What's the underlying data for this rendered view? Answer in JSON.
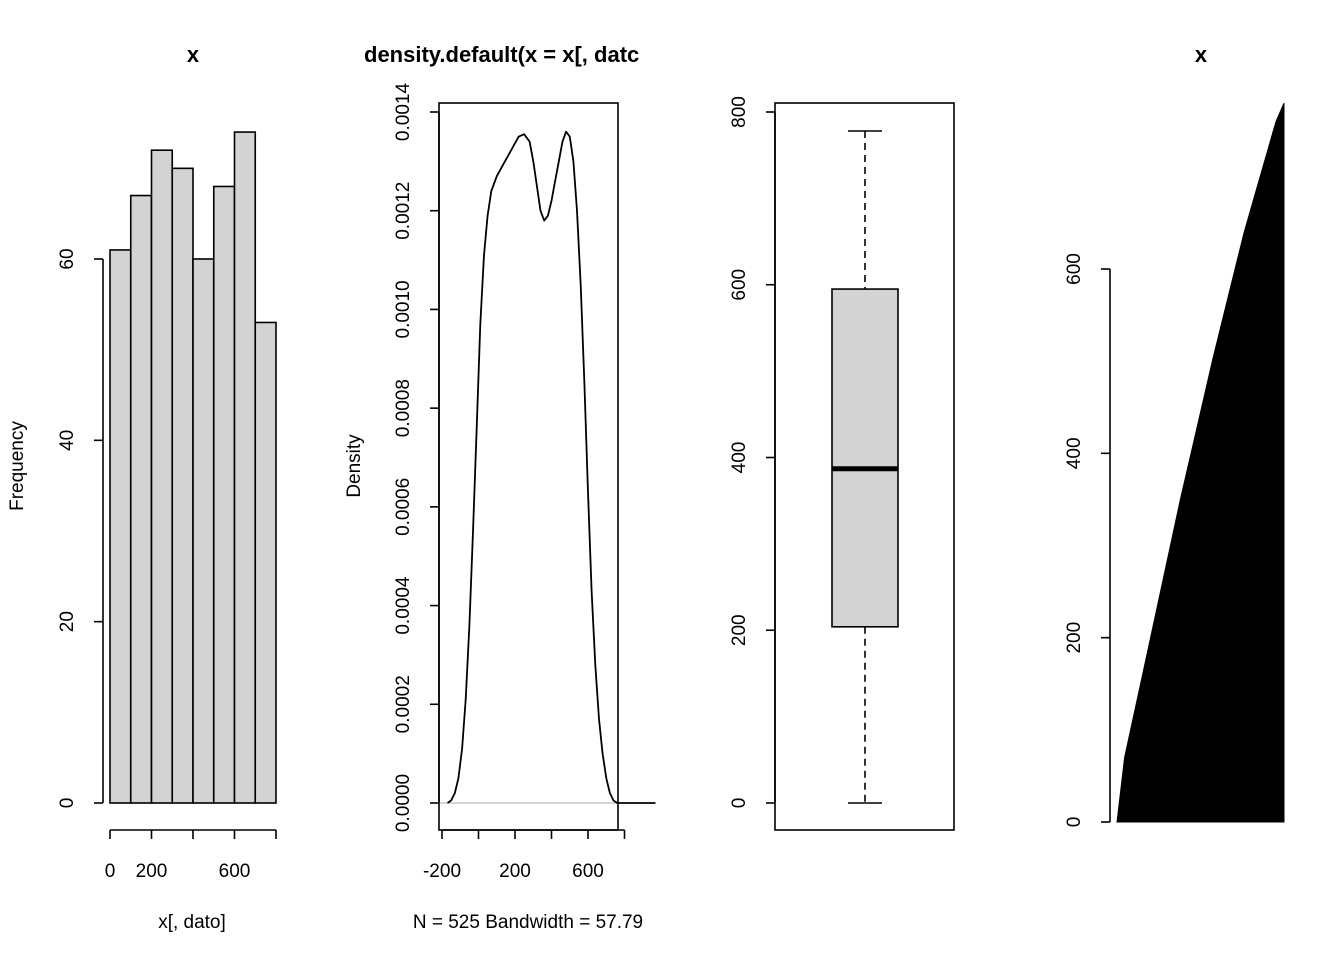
{
  "chart_data": [
    {
      "type": "bar",
      "subtype": "histogram",
      "title": "x",
      "xlabel": "x[, dato]",
      "ylabel": "Frequency",
      "bin_edges": [
        0,
        100,
        200,
        300,
        400,
        500,
        600,
        700,
        800
      ],
      "values": [
        61,
        67,
        72,
        70,
        60,
        68,
        74,
        53
      ],
      "xlim": [
        0,
        800
      ],
      "ylim": [
        0,
        74
      ],
      "x_ticks": [
        "0",
        "200",
        "600"
      ],
      "y_ticks": [
        "0",
        "20",
        "40",
        "60"
      ],
      "bar_color": "#d3d3d3",
      "grid": false
    },
    {
      "type": "line",
      "title": "density.default(x = x[, datc",
      "xlabel": "N = 525   Bandwidth = 57.79",
      "ylabel": "Density",
      "x": [
        -170,
        -150,
        -130,
        -110,
        -90,
        -70,
        -50,
        -30,
        -10,
        10,
        30,
        50,
        70,
        100,
        130,
        160,
        190,
        220,
        250,
        280,
        300,
        320,
        340,
        360,
        380,
        400,
        420,
        440,
        460,
        480,
        500,
        520,
        540,
        560,
        580,
        600,
        620,
        640,
        660,
        680,
        700,
        720,
        740,
        760,
        780,
        800,
        820,
        840,
        860,
        880,
        900,
        920,
        950,
        970
      ],
      "y": [
        0.0,
        5e-06,
        2e-05,
        5e-05,
        0.00011,
        0.00021,
        0.00036,
        0.00055,
        0.00076,
        0.00097,
        0.00111,
        0.00119,
        0.00124,
        0.00127,
        0.00129,
        0.00131,
        0.00133,
        0.00135,
        0.001355,
        0.00134,
        0.0013,
        0.00125,
        0.0012,
        0.00118,
        0.00119,
        0.00122,
        0.00126,
        0.0013,
        0.00134,
        0.00136,
        0.00135,
        0.0013,
        0.0012,
        0.00105,
        0.00085,
        0.00063,
        0.00043,
        0.00028,
        0.00017,
        0.0001,
        5e-05,
        2e-05,
        5e-06,
        0.0,
        0.0,
        0.0,
        0.0,
        0.0,
        0.0,
        0.0,
        0.0,
        0.0,
        0.0,
        0.0
      ],
      "xlim": [
        -200,
        1000
      ],
      "ylim": [
        0,
        0.0014
      ],
      "x_ticks": [
        "-200",
        "200",
        "600"
      ],
      "y_ticks": [
        "0.0000",
        "0.0002",
        "0.0004",
        "0.0006",
        "0.0008",
        "0.0010",
        "0.0012",
        "0.0014"
      ],
      "baseline_color": "#bebebe",
      "grid": false
    },
    {
      "type": "box",
      "min": 0,
      "q1": 204,
      "median": 387,
      "q3": 595,
      "max": 778,
      "ylim": [
        -30,
        810
      ],
      "y_ticks": [
        "0",
        "200",
        "400",
        "600",
        "800"
      ],
      "box_color": "#d3d3d3",
      "grid": false
    },
    {
      "type": "area",
      "title": "x",
      "description_of_marks": "sorted values plotted as vertical black lines from 0",
      "x": [
        1,
        25,
        50,
        75,
        100,
        150,
        200,
        250,
        300,
        350,
        400,
        450,
        500,
        525
      ],
      "y": [
        0,
        70,
        110,
        150,
        190,
        270,
        350,
        425,
        500,
        570,
        640,
        700,
        760,
        780
      ],
      "y_ticks": [
        "0",
        "200",
        "400",
        "600"
      ],
      "fill_color": "#000000",
      "grid": false
    }
  ]
}
